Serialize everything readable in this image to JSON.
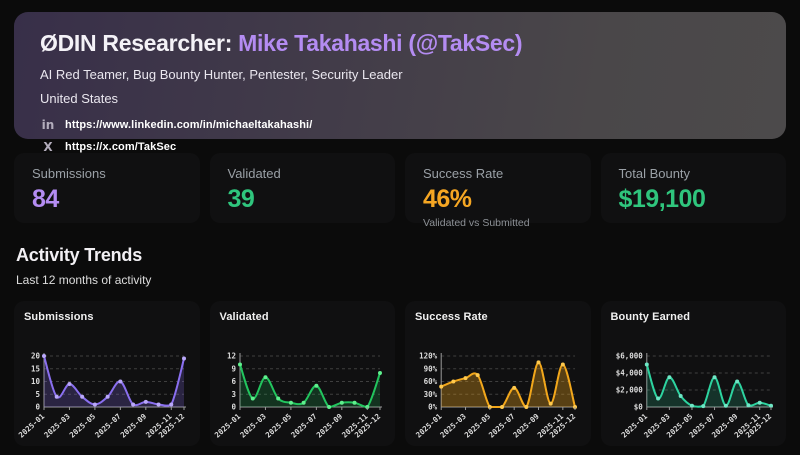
{
  "header": {
    "title_prefix": "ØDIN Researcher: ",
    "researcher_name": "Mike Takahashi (@TakSec)",
    "roles": "AI Red Teamer, Bug Bounty Hunter, Pentester, Security Leader",
    "country": "United States",
    "links": [
      {
        "icon": "linkedin-icon",
        "glyph": "in",
        "url": "https://www.linkedin.com/in/michaeltakahashi/"
      },
      {
        "icon": "x-icon",
        "glyph": "X",
        "url": "https://x.com/TakSec"
      }
    ]
  },
  "stats": [
    {
      "label": "Submissions",
      "value": "84",
      "sub": "",
      "color": "#b48cf2"
    },
    {
      "label": "Validated",
      "value": "39",
      "sub": "",
      "color": "#2fc57d"
    },
    {
      "label": "Success Rate",
      "value": "46%",
      "sub": "Validated vs Submitted",
      "color": "#f5a623"
    },
    {
      "label": "Total Bounty",
      "value": "$19,100",
      "sub": "",
      "color": "#2fc57d"
    }
  ],
  "activity": {
    "title": "Activity Trends",
    "subtitle": "Last 12 months of activity"
  },
  "chart_data": [
    {
      "type": "line",
      "title": "Submissions",
      "x": [
        "2025-01",
        "2025-02",
        "2025-03",
        "2025-04",
        "2025-05",
        "2025-06",
        "2025-07",
        "2025-08",
        "2025-09",
        "2025-10",
        "2025-11",
        "2025-12"
      ],
      "values": [
        20,
        4,
        9,
        4,
        1,
        4,
        10,
        1,
        2,
        1,
        1,
        19
      ],
      "ylim": [
        0,
        20
      ],
      "yticks": [
        0,
        5,
        10,
        15,
        20
      ],
      "ytick_format": "plain",
      "x_ticks_shown": [
        "2025-01",
        "2025-03",
        "2025-05",
        "2025-07",
        "2025-09",
        "2025-11",
        "2025-12"
      ],
      "grid": "horizontal-dashed",
      "legend": "none",
      "color": "#8a6ff0",
      "marker_color": "#b9a7fa",
      "fill_opacity": 0.22
    },
    {
      "type": "line",
      "title": "Validated",
      "x": [
        "2025-01",
        "2025-02",
        "2025-03",
        "2025-04",
        "2025-05",
        "2025-06",
        "2025-07",
        "2025-08",
        "2025-09",
        "2025-10",
        "2025-11",
        "2025-12"
      ],
      "values": [
        10,
        2,
        7,
        2,
        1,
        1,
        5,
        0,
        1,
        1,
        0,
        8
      ],
      "ylim": [
        0,
        12
      ],
      "yticks": [
        0,
        3,
        6,
        9,
        12
      ],
      "ytick_format": "plain",
      "x_ticks_shown": [
        "2025-01",
        "2025-03",
        "2025-05",
        "2025-07",
        "2025-09",
        "2025-11",
        "2025-12"
      ],
      "grid": "horizontal-dashed",
      "legend": "none",
      "color": "#22c55e",
      "marker_color": "#5ef08d",
      "fill_opacity": 0.2
    },
    {
      "type": "line",
      "title": "Success Rate",
      "x": [
        "2025-01",
        "2025-02",
        "2025-03",
        "2025-04",
        "2025-05",
        "2025-06",
        "2025-07",
        "2025-08",
        "2025-09",
        "2025-10",
        "2025-11",
        "2025-12"
      ],
      "values": [
        48,
        60,
        68,
        75,
        0,
        0,
        45,
        0,
        105,
        8,
        100,
        0
      ],
      "ylim": [
        0,
        120
      ],
      "yticks": [
        0,
        30,
        60,
        90,
        120
      ],
      "ytick_format": "percent",
      "x_ticks_shown": [
        "2025-01",
        "2025-03",
        "2025-05",
        "2025-07",
        "2025-09",
        "2025-11",
        "2025-12"
      ],
      "grid": "horizontal-dashed",
      "legend": "none",
      "color": "#f2a71b",
      "marker_color": "#ffc94d",
      "fill_opacity": 0.32
    },
    {
      "type": "line",
      "title": "Bounty Earned",
      "x": [
        "2025-01",
        "2025-02",
        "2025-03",
        "2025-04",
        "2025-05",
        "2025-06",
        "2025-07",
        "2025-08",
        "2025-09",
        "2025-10",
        "2025-11",
        "2025-12"
      ],
      "values": [
        5000,
        1000,
        3500,
        1300,
        150,
        100,
        3500,
        150,
        3000,
        200,
        500,
        150
      ],
      "ylim": [
        0,
        6000
      ],
      "yticks": [
        0,
        2000,
        4000,
        6000
      ],
      "ytick_format": "dollar",
      "x_ticks_shown": [
        "2025-01",
        "2025-03",
        "2025-05",
        "2025-07",
        "2025-09",
        "2025-11",
        "2025-12"
      ],
      "grid": "horizontal-dashed",
      "legend": "none",
      "color": "#2dd4a0",
      "marker_color": "#6ee7c5",
      "fill_opacity": 0.18
    }
  ]
}
